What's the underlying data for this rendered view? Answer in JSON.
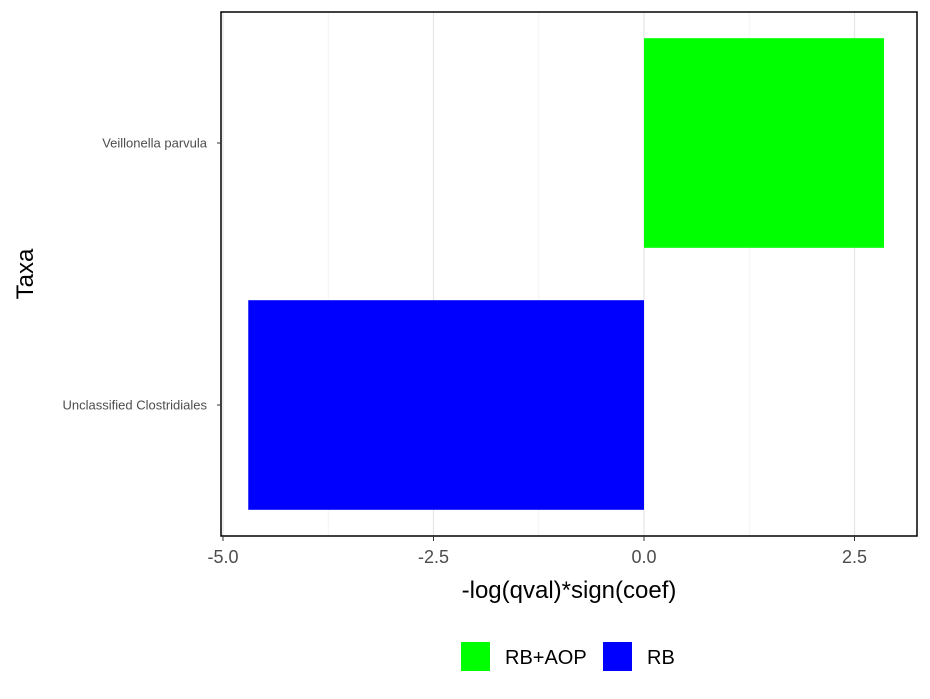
{
  "chart_data": {
    "type": "bar",
    "orientation": "horizontal",
    "xlabel": "-log(qval)*sign(coef)",
    "ylabel": "Taxa",
    "xlim": [
      -5.0,
      3.3
    ],
    "x_ticks": [
      -5.0,
      -2.5,
      0.0,
      2.5
    ],
    "x_tick_labels": [
      "-5.0",
      "-2.5",
      "0.0",
      "2.5"
    ],
    "categories": [
      "Veillonella parvula",
      "Unclassified Clostridiales"
    ],
    "bars": [
      {
        "category": "Veillonella parvula",
        "value": 2.85,
        "group": "RB+AOP"
      },
      {
        "category": "Unclassified Clostridiales",
        "value": -4.7,
        "group": "RB"
      }
    ],
    "legend": {
      "position": "bottom",
      "items": [
        {
          "label": "RB+AOP",
          "color": "#00ff00"
        },
        {
          "label": "RB",
          "color": "#0000ff"
        }
      ]
    },
    "grid": true
  }
}
